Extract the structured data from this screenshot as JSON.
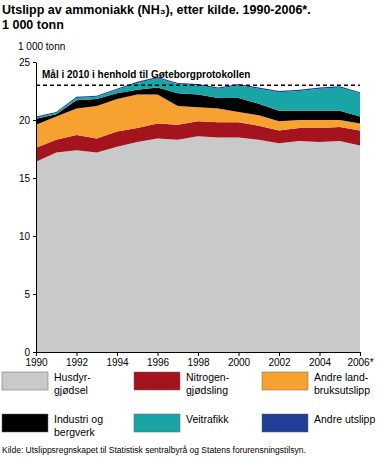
{
  "chart_data": {
    "type": "area",
    "stacked": true,
    "title": "Utslipp av ammoniakk (NH₃), etter kilde. 1990-2006*.",
    "subtitle": "1 000 tonn",
    "y_label": "1 000 tonn",
    "source": "Kilde: Utslippsregnskapet til Statistisk sentralbyrå og Statens forurensningstilsyn.",
    "x": [
      1990,
      1991,
      1992,
      1993,
      1994,
      1995,
      1996,
      1997,
      1998,
      1999,
      2000,
      2001,
      2002,
      2003,
      2004,
      2005,
      2006
    ],
    "xlim": [
      1990,
      2006
    ],
    "xticks": [
      1990,
      1992,
      1994,
      1996,
      1998,
      2000,
      2002,
      2004,
      {
        "value": 2006,
        "label": "2006*"
      }
    ],
    "ylim": [
      0,
      25
    ],
    "yticks": [
      0,
      5,
      10,
      15,
      20,
      25
    ],
    "grid": false,
    "annotations": [
      {
        "text": "Mål i 2010 i henhold til Gøteborgprotokollen",
        "y": 23
      }
    ],
    "series": [
      {
        "name": "Husdyr-\ngjødsel",
        "color": "#c9c9c9",
        "values": [
          16.4,
          17.2,
          17.4,
          17.2,
          17.7,
          18.1,
          18.4,
          18.3,
          18.6,
          18.5,
          18.5,
          18.3,
          18.0,
          18.2,
          18.1,
          18.2,
          17.8
        ]
      },
      {
        "name": "Nitrogen-\ngjødsling",
        "color": "#a3141f",
        "values": [
          1.2,
          1.1,
          1.3,
          1.2,
          1.3,
          1.2,
          1.3,
          1.3,
          1.3,
          1.3,
          1.3,
          1.2,
          1.1,
          1.1,
          1.2,
          1.2,
          1.3
        ]
      },
      {
        "name": "Andre land-\nbruksutslipp",
        "color": "#f7a131",
        "values": [
          2.0,
          2.0,
          2.3,
          2.8,
          2.8,
          2.9,
          2.5,
          1.6,
          1.2,
          1.2,
          0.9,
          0.9,
          0.8,
          0.7,
          0.7,
          0.6,
          0.6
        ]
      },
      {
        "name": "Industri og\nbergverk",
        "color": "#000000",
        "values": [
          0.5,
          0.2,
          0.7,
          0.6,
          0.5,
          0.4,
          0.6,
          1.1,
          1.1,
          0.9,
          1.2,
          1.0,
          0.9,
          0.8,
          0.8,
          0.8,
          0.6
        ]
      },
      {
        "name": "Veitrafikk",
        "color": "#19a5a6",
        "values": [
          0.1,
          0.1,
          0.2,
          0.2,
          0.3,
          0.6,
          0.8,
          0.8,
          0.8,
          0.8,
          1.1,
          1.3,
          1.6,
          1.7,
          1.9,
          2.0,
          2.0
        ]
      },
      {
        "name": "Andre utslipp",
        "color": "#1f3f99",
        "values": [
          0.1,
          0.1,
          0.1,
          0.1,
          0.1,
          0.1,
          0.1,
          0.1,
          0.1,
          0.1,
          0.1,
          0.1,
          0.1,
          0.1,
          0.1,
          0.1,
          0.1
        ]
      }
    ]
  }
}
